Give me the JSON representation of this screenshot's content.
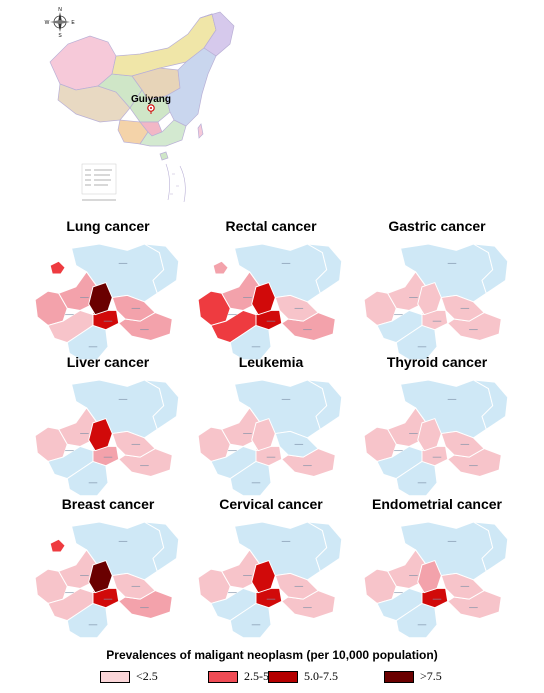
{
  "locator": {
    "city_label": "Guiyang",
    "compass": {
      "n": "N",
      "s": "S",
      "e": "E",
      "w": "W"
    },
    "colors": {
      "land": "#cfe6c7",
      "land2": "#e8d9c2",
      "land3": "#c9d6ee",
      "border": "#b9b0d6",
      "sea": "#ffffff"
    }
  },
  "panels": [
    {
      "title": "Lung cancer",
      "levels": {
        "north": 0,
        "northwest_spot": 3,
        "center_west": 2,
        "center": 4,
        "center_core": 5,
        "west": 2,
        "southwest": 1,
        "south": 4,
        "southeast": 2,
        "east": 2,
        "northeast": 0
      }
    },
    {
      "title": "Rectal cancer",
      "levels": {
        "north": 0,
        "northwest_spot": 2,
        "center_west": 2,
        "center": 2,
        "center_core": 4,
        "west": 3,
        "southwest": 3,
        "south": 4,
        "southeast": 2,
        "east": 1,
        "northeast": 0
      }
    },
    {
      "title": "Gastric cancer",
      "levels": {
        "north": 0,
        "northwest_spot": 0,
        "center_west": 1,
        "center": 1,
        "center_core": 1,
        "west": 1,
        "southwest": 0,
        "south": 1,
        "southeast": 1,
        "east": 1,
        "northeast": 0
      }
    },
    {
      "title": "Liver cancer",
      "levels": {
        "north": 0,
        "northwest_spot": 0,
        "center_west": 1,
        "center": 1,
        "center_core": 4,
        "west": 1,
        "southwest": 0,
        "south": 2,
        "southeast": 1,
        "east": 1,
        "northeast": 0
      }
    },
    {
      "title": "Leukemia",
      "levels": {
        "north": 0,
        "northwest_spot": 0,
        "center_west": 1,
        "center": 1,
        "center_core": 1,
        "west": 1,
        "southwest": 0,
        "south": 1,
        "southeast": 1,
        "east": 0,
        "northeast": 0
      }
    },
    {
      "title": "Thyroid cancer",
      "levels": {
        "north": 0,
        "northwest_spot": 0,
        "center_west": 1,
        "center": 1,
        "center_core": 1,
        "west": 1,
        "southwest": 0,
        "south": 1,
        "southeast": 1,
        "east": 1,
        "northeast": 0
      }
    },
    {
      "title": "Breast cancer",
      "levels": {
        "north": 0,
        "northwest_spot": 3,
        "center_west": 1,
        "center": 4,
        "center_core": 5,
        "west": 1,
        "southwest": 1,
        "south": 4,
        "southeast": 2,
        "east": 1,
        "northeast": 0
      }
    },
    {
      "title": "Cervical cancer",
      "levels": {
        "north": 0,
        "northwest_spot": 0,
        "center_west": 1,
        "center": 1,
        "center_core": 4,
        "west": 1,
        "southwest": 0,
        "south": 4,
        "southeast": 1,
        "east": 1,
        "northeast": 0
      }
    },
    {
      "title": "Endometrial cancer",
      "levels": {
        "north": 0,
        "northwest_spot": 0,
        "center_west": 1,
        "center": 1,
        "center_core": 2,
        "west": 1,
        "southwest": 0,
        "south": 4,
        "southeast": 1,
        "east": 1,
        "northeast": 0
      }
    }
  ],
  "level_colors": [
    "#cfe8f6",
    "#f7c4ca",
    "#f3a2ab",
    "#ee3b40",
    "#d10a0a",
    "#6a0000"
  ],
  "outline_color": "#ffffff",
  "legend": {
    "title": "Prevalences of maligant neoplasm (per 10,000 population)",
    "items": [
      {
        "label": "<2.5",
        "color": "#fbd6d9"
      },
      {
        "label": "2.5-5.0",
        "color": "#ef4c55"
      },
      {
        "label": "5.0-7.5",
        "color": "#b40000"
      },
      {
        "label": ">7.5",
        "color": "#6a0000"
      }
    ]
  }
}
